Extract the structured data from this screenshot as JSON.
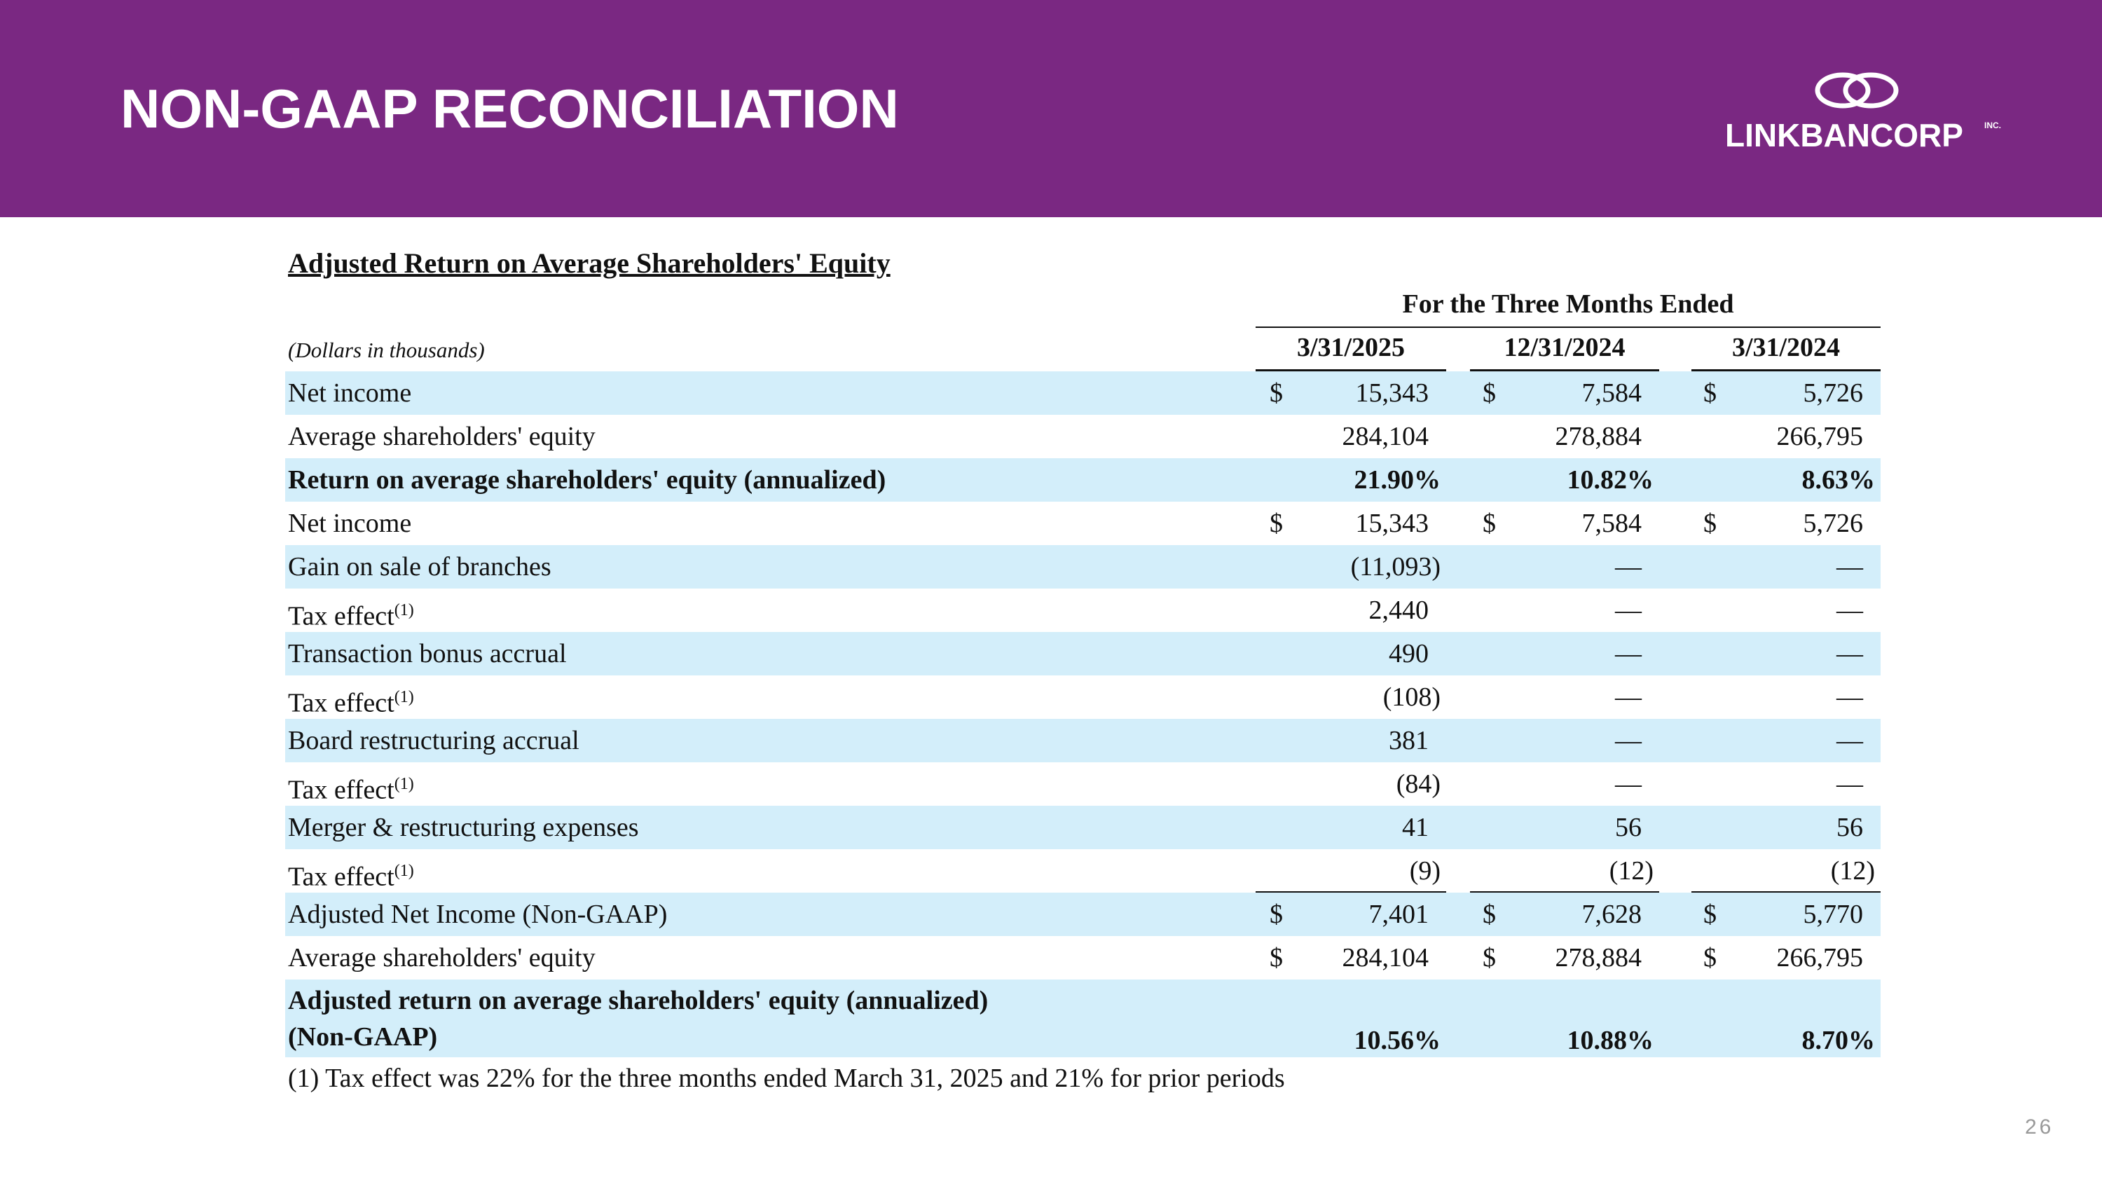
{
  "header": {
    "title": "NON-GAAP RECONCILIATION",
    "logo": "LINKBANCORP",
    "logo_suffix": "INC."
  },
  "table": {
    "title": "Adjusted Return on Average Shareholders' Equity",
    "period_header": "For the Three Months Ended",
    "units": "(Dollars in thousands)",
    "columns": [
      "3/31/2025",
      "12/31/2024",
      "3/31/2024"
    ],
    "rows": [
      {
        "label": "Net income",
        "cells": [
          {
            "currency": "$",
            "value": "15,343"
          },
          {
            "currency": "$",
            "value": "7,584"
          },
          {
            "currency": "$",
            "value": "5,726"
          }
        ]
      },
      {
        "label": "Average shareholders' equity",
        "cells": [
          {
            "value": "284,104"
          },
          {
            "value": "278,884"
          },
          {
            "value": "266,795"
          }
        ]
      },
      {
        "label": "Return on average shareholders' equity (annualized)",
        "cells": [
          {
            "value": "21.90%"
          },
          {
            "value": "10.82%"
          },
          {
            "value": "8.63%"
          }
        ]
      },
      {
        "label": "Net income",
        "cells": [
          {
            "currency": "$",
            "value": "15,343"
          },
          {
            "currency": "$",
            "value": "7,584"
          },
          {
            "currency": "$",
            "value": "5,726"
          }
        ]
      },
      {
        "label": "Gain on sale of branches",
        "cells": [
          {
            "value": "(11,093)"
          },
          {
            "value": "—"
          },
          {
            "value": "—"
          }
        ]
      },
      {
        "label": "Tax effect",
        "note": "(1)",
        "cells": [
          {
            "value": "2,440"
          },
          {
            "value": "—"
          },
          {
            "value": "—"
          }
        ]
      },
      {
        "label": "Transaction bonus accrual",
        "cells": [
          {
            "value": "490"
          },
          {
            "value": "—"
          },
          {
            "value": "—"
          }
        ]
      },
      {
        "label": "Tax effect",
        "note": "(1)",
        "cells": [
          {
            "value": "(108)"
          },
          {
            "value": "—"
          },
          {
            "value": "—"
          }
        ]
      },
      {
        "label": "Board restructuring accrual",
        "cells": [
          {
            "value": "381"
          },
          {
            "value": "—"
          },
          {
            "value": "—"
          }
        ]
      },
      {
        "label": "Tax effect",
        "note": "(1)",
        "cells": [
          {
            "value": "(84)"
          },
          {
            "value": "—"
          },
          {
            "value": "—"
          }
        ]
      },
      {
        "label": "Merger & restructuring expenses",
        "cells": [
          {
            "value": "41"
          },
          {
            "value": "56"
          },
          {
            "value": "56"
          }
        ]
      },
      {
        "label": "Tax effect",
        "note": "(1)",
        "cells": [
          {
            "value": "(9)"
          },
          {
            "value": "(12)"
          },
          {
            "value": "(12)"
          }
        ]
      },
      {
        "label": "Adjusted Net Income (Non-GAAP)",
        "cells": [
          {
            "currency": "$",
            "value": "7,401"
          },
          {
            "currency": "$",
            "value": "7,628"
          },
          {
            "currency": "$",
            "value": "5,770"
          }
        ]
      },
      {
        "label": "Average shareholders' equity",
        "cells": [
          {
            "currency": "$",
            "value": "284,104"
          },
          {
            "currency": "$",
            "value": "278,884"
          },
          {
            "currency": "$",
            "value": "266,795"
          }
        ]
      },
      {
        "label": [
          "Adjusted return on average shareholders' equity (annualized)",
          "(Non-GAAP)"
        ],
        "cells": [
          {
            "value": "10.56%"
          },
          {
            "value": "10.88%"
          },
          {
            "value": "8.70%"
          }
        ]
      }
    ],
    "footnote": "(1) Tax effect was 22% for the three months ended March 31, 2025 and 21% for prior periods"
  },
  "page_number": "26"
}
